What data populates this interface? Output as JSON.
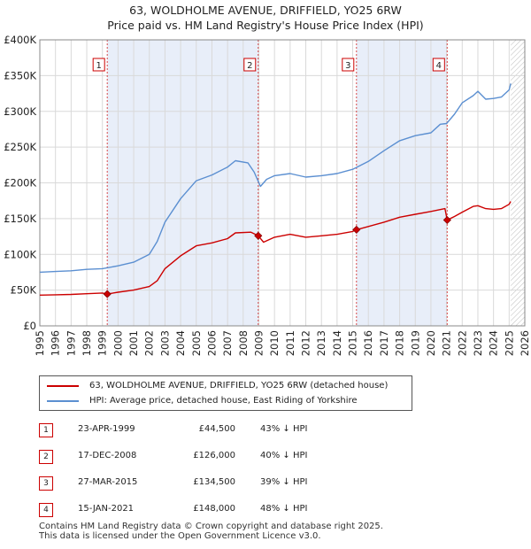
{
  "title_line1": "63, WOLDHOLME AVENUE, DRIFFIELD, YO25 6RW",
  "title_line2": "Price paid vs. HM Land Registry's House Price Index (HPI)",
  "colors": {
    "price_line": "#cc0000",
    "hpi_line": "#5b8fd1",
    "shade": "#e8eef9",
    "marker_border": "#cc0000",
    "grid": "#d9d9d9"
  },
  "legend": {
    "items": [
      {
        "label": "63, WOLDHOLME AVENUE, DRIFFIELD, YO25 6RW (detached house)",
        "color": "#cc0000"
      },
      {
        "label": "HPI: Average price, detached house, East Riding of Yorkshire",
        "color": "#5b8fd1"
      }
    ]
  },
  "sales": [
    {
      "num": "1",
      "date": "23-APR-1999",
      "price": "£44,500",
      "hpi": "43% ↓ HPI"
    },
    {
      "num": "2",
      "date": "17-DEC-2008",
      "price": "£126,000",
      "hpi": "40% ↓ HPI"
    },
    {
      "num": "3",
      "date": "27-MAR-2015",
      "price": "£134,500",
      "hpi": "39% ↓ HPI"
    },
    {
      "num": "4",
      "date": "15-JAN-2021",
      "price": "£148,000",
      "hpi": "48% ↓ HPI"
    }
  ],
  "footer": {
    "line1": "Contains HM Land Registry data © Crown copyright and database right 2025.",
    "line2": "This data is licensed under the Open Government Licence v3.0."
  },
  "chart_data": {
    "type": "line",
    "title": "63, WOLDHOLME AVENUE, DRIFFIELD, YO25 6RW — Price paid vs. HM Land Registry's House Price Index (HPI)",
    "xlabel": "",
    "ylabel": "",
    "xlim": [
      1995,
      2026
    ],
    "ylim": [
      0,
      400000
    ],
    "yticks": [
      0,
      50000,
      100000,
      150000,
      200000,
      250000,
      300000,
      350000,
      400000
    ],
    "ytick_labels": [
      "£0",
      "£50K",
      "£100K",
      "£150K",
      "£200K",
      "£250K",
      "£300K",
      "£350K",
      "£400K"
    ],
    "xticks": [
      1995,
      1996,
      1997,
      1998,
      1999,
      2000,
      2001,
      2002,
      2003,
      2004,
      2005,
      2006,
      2007,
      2008,
      2009,
      2010,
      2011,
      2012,
      2013,
      2014,
      2015,
      2016,
      2017,
      2018,
      2019,
      2020,
      2021,
      2022,
      2023,
      2024,
      2025,
      2026
    ],
    "grid": true,
    "shaded_periods": [
      [
        1999.31,
        2008.96
      ],
      [
        2015.24,
        2021.04
      ]
    ],
    "forecast_from": 2025.1,
    "markers": [
      {
        "label": "1",
        "x": 1999.31,
        "y": 44500
      },
      {
        "label": "2",
        "x": 2008.96,
        "y": 126000
      },
      {
        "label": "3",
        "x": 2015.24,
        "y": 134500
      },
      {
        "label": "4",
        "x": 2021.04,
        "y": 148000
      }
    ],
    "series": [
      {
        "name": "63, WOLDHOLME AVENUE, DRIFFIELD, YO25 6RW (detached house)",
        "x": [
          1995,
          1996,
          1997,
          1998,
          1999.0,
          1999.31,
          2000,
          2001,
          2002,
          2002.5,
          2003,
          2004,
          2005,
          2006,
          2007,
          2007.5,
          2008.5,
          2008.96,
          2009.3,
          2010,
          2011,
          2012,
          2013,
          2014,
          2015.0,
          2015.24,
          2016,
          2017,
          2018,
          2019,
          2020,
          2020.9,
          2021.04,
          2021.5,
          2022,
          2022.7,
          2023,
          2023.5,
          2024,
          2024.5,
          2025,
          2025.1
        ],
        "y": [
          43000,
          43500,
          44000,
          45000,
          46000,
          44500,
          47000,
          50000,
          55000,
          63000,
          80000,
          98000,
          112000,
          116000,
          122000,
          130000,
          131000,
          126000,
          117000,
          124000,
          128000,
          124000,
          126000,
          128000,
          132000,
          134500,
          139000,
          145000,
          152000,
          156000,
          160000,
          164000,
          148000,
          153000,
          159000,
          167000,
          168000,
          164000,
          163000,
          164000,
          170000,
          174000
        ]
      },
      {
        "name": "HPI: Average price, detached house, East Riding of Yorkshire",
        "x": [
          1995,
          1996,
          1997,
          1998,
          1999,
          2000,
          2001,
          2002,
          2002.5,
          2003,
          2004,
          2005,
          2006,
          2007,
          2007.5,
          2008.3,
          2008.7,
          2009.1,
          2009.5,
          2010,
          2011,
          2012,
          2013,
          2014,
          2015,
          2016,
          2017,
          2018,
          2019,
          2020,
          2020.6,
          2021,
          2021.5,
          2022,
          2022.7,
          2023,
          2023.5,
          2024,
          2024.5,
          2025,
          2025.1
        ],
        "y": [
          75000,
          76000,
          77000,
          79000,
          80000,
          84000,
          89000,
          100000,
          118000,
          145000,
          178000,
          203000,
          211000,
          222000,
          231000,
          228000,
          215000,
          195000,
          205000,
          210000,
          213000,
          208000,
          210000,
          213000,
          219000,
          230000,
          245000,
          259000,
          266000,
          270000,
          282000,
          283000,
          296000,
          312000,
          322000,
          328000,
          317000,
          318000,
          320000,
          330000,
          339000
        ]
      }
    ]
  }
}
